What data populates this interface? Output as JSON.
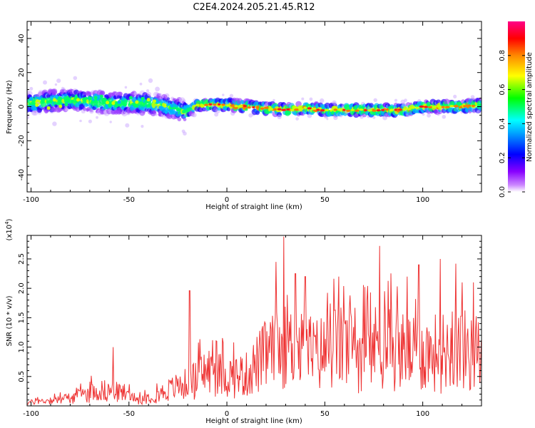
{
  "title": "C2E4.2024.205.21.45.R12",
  "chart_data": [
    {
      "type": "heatmap",
      "title": "C2E4.2024.205.21.45.R12",
      "xlabel": "Height of straight line (km)",
      "ylabel": "Frequency (Hz)",
      "xlim": [
        -102,
        130
      ],
      "ylim": [
        -50,
        50
      ],
      "xticks": [
        "-100",
        "-50",
        "0",
        "50",
        "100"
      ],
      "yticks": [
        "40",
        "20",
        "0",
        "-20",
        "-40"
      ],
      "colorbar": {
        "label": "Normalized spectral amplitude",
        "range": [
          0.0,
          1.0
        ],
        "ticks": [
          "0.0",
          "0.2",
          "0.4",
          "0.6",
          "0.8"
        ],
        "colors": [
          "#ffffff",
          "#9900ff",
          "#0000ff",
          "#00ffff",
          "#00ff00",
          "#ffff00",
          "#ff8800",
          "#ff0000",
          "#ff0088"
        ]
      },
      "ridge": [
        {
          "x": -100,
          "f": 2
        },
        {
          "x": -90,
          "f": 3
        },
        {
          "x": -80,
          "f": 4
        },
        {
          "x": -70,
          "f": 3
        },
        {
          "x": -60,
          "f": 2
        },
        {
          "x": -50,
          "f": 2
        },
        {
          "x": -40,
          "f": 2
        },
        {
          "x": -30,
          "f": 0
        },
        {
          "x": -20,
          "f": -3
        },
        {
          "x": -15,
          "f": 1
        },
        {
          "x": -10,
          "f": 1
        },
        {
          "x": 0,
          "f": 1
        },
        {
          "x": 10,
          "f": 0
        },
        {
          "x": 20,
          "f": -1
        },
        {
          "x": 30,
          "f": -2
        },
        {
          "x": 40,
          "f": -1
        },
        {
          "x": 50,
          "f": -2
        },
        {
          "x": 60,
          "f": -2
        },
        {
          "x": 70,
          "f": -2
        },
        {
          "x": 80,
          "f": -2
        },
        {
          "x": 90,
          "f": -2
        },
        {
          "x": 100,
          "f": 0
        },
        {
          "x": 110,
          "f": 0
        },
        {
          "x": 120,
          "f": 0
        },
        {
          "x": 130,
          "f": 1
        }
      ]
    },
    {
      "type": "line",
      "xlabel": "Height of straight line (km)",
      "ylabel": "SNR (10 * v/v)",
      "yscale_label": "(x10",
      "yscale_exp": "4",
      "yscale_close": ")",
      "xlim": [
        -102,
        130
      ],
      "ylim": [
        0,
        2.9
      ],
      "xticks": [
        "-100",
        "-50",
        "0",
        "50",
        "100"
      ],
      "yticks": [
        "0.5",
        "1.0",
        "1.5",
        "2.0",
        "2.5"
      ],
      "color": "#ee3333",
      "envelope": [
        {
          "x": -102,
          "y": 0.08
        },
        {
          "x": -80,
          "y": 0.2
        },
        {
          "x": -65,
          "y": 0.4
        },
        {
          "x": -55,
          "y": 0.35
        },
        {
          "x": -45,
          "y": 0.15
        },
        {
          "x": -35,
          "y": 0.3
        },
        {
          "x": -25,
          "y": 0.5
        },
        {
          "x": -18,
          "y": 0.6
        },
        {
          "x": -10,
          "y": 0.9
        },
        {
          "x": 0,
          "y": 0.75
        },
        {
          "x": 10,
          "y": 0.8
        },
        {
          "x": 20,
          "y": 1.3
        },
        {
          "x": 30,
          "y": 1.5
        },
        {
          "x": 45,
          "y": 1.3
        },
        {
          "x": 55,
          "y": 1.5
        },
        {
          "x": 70,
          "y": 1.4
        },
        {
          "x": 80,
          "y": 1.6
        },
        {
          "x": 95,
          "y": 1.3
        },
        {
          "x": 110,
          "y": 1.4
        },
        {
          "x": 120,
          "y": 1.5
        },
        {
          "x": 130,
          "y": 1.1
        }
      ],
      "peaks": [
        {
          "x": -58,
          "y": 1.0
        },
        {
          "x": -19,
          "y": 1.96
        },
        {
          "x": 25,
          "y": 2.45
        },
        {
          "x": 29,
          "y": 2.88
        },
        {
          "x": 35,
          "y": 2.25
        },
        {
          "x": 40,
          "y": 2.2
        },
        {
          "x": 57,
          "y": 2.2
        },
        {
          "x": 78,
          "y": 2.72
        },
        {
          "x": 92,
          "y": 2.2
        },
        {
          "x": 98,
          "y": 2.4
        },
        {
          "x": 109,
          "y": 2.5
        },
        {
          "x": 117,
          "y": 2.42
        },
        {
          "x": 120,
          "y": 2.1
        },
        {
          "x": 126,
          "y": 2.1
        }
      ]
    }
  ]
}
